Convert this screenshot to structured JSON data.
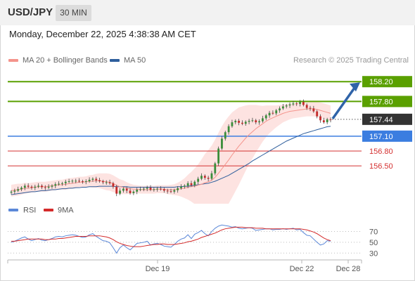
{
  "header": {
    "symbol": "USD/JPY",
    "timeframe": "30 MIN"
  },
  "timestamp": "Monday, December 22, 2025 4:38:38 AM CET",
  "legend": {
    "ma20_label": "MA 20 + Bollinger Bands",
    "ma50_label": "MA 50",
    "ma20_color": "#f4948c",
    "ma50_color": "#2e5e9c",
    "credit": "Research © 2025 Trading Central"
  },
  "colors": {
    "resistance": "#5aa000",
    "support_blue": "#3b7de0",
    "support_red": "#d43030",
    "current": "#333333",
    "arrow": "#2f63a8",
    "bull_candle": "#3a8d3a",
    "bear_candle": "#c42a2a",
    "band_fill": "#fde3e1",
    "rsi": "#5b88d8",
    "rsi_ma": "#d42a2a"
  },
  "chart_data": [
    {
      "type": "candlestick",
      "ylim": [
        155.85,
        158.6
      ],
      "xlabel": "",
      "ylabel": "",
      "x_ticks": [
        "Dec 19",
        "Dec 22",
        "Dec 28"
      ],
      "levels": [
        {
          "value": 158.2,
          "label": "158.20",
          "style": "resistance"
        },
        {
          "value": 157.8,
          "label": "157.80",
          "style": "resistance"
        },
        {
          "value": 157.44,
          "label": "157.44",
          "style": "current"
        },
        {
          "value": 157.1,
          "label": "157.10",
          "style": "support_blue"
        },
        {
          "value": 156.8,
          "label": "156.80",
          "style": "support_red"
        },
        {
          "value": 156.5,
          "label": "156.50",
          "style": "support_red"
        }
      ],
      "target_arrow": {
        "from": 157.44,
        "to": 158.2
      },
      "price_close": [
        155.98,
        156.0,
        156.03,
        156.06,
        156.1,
        156.08,
        156.06,
        156.08,
        156.1,
        156.07,
        156.06,
        156.08,
        156.1,
        156.13,
        156.14,
        156.15,
        156.18,
        156.19,
        156.2,
        156.2,
        156.19,
        156.18,
        156.19,
        156.22,
        156.24,
        156.21,
        156.19,
        156.17,
        156.17,
        156.15,
        156.08,
        155.94,
        156.0,
        156.04,
        156.0,
        155.95,
        155.98,
        156.02,
        156.03,
        156.04,
        156.06,
        156.02,
        156.03,
        156.04,
        156.03,
        156.0,
        155.99,
        155.98,
        156.01,
        156.05,
        156.08,
        156.1,
        156.15,
        156.11,
        156.18,
        156.24,
        156.3,
        156.26,
        156.24,
        156.35,
        156.55,
        156.85,
        157.05,
        157.18,
        157.3,
        157.38,
        157.41,
        157.37,
        157.35,
        157.39,
        157.41,
        157.42,
        157.38,
        157.4,
        157.46,
        157.52,
        157.57,
        157.56,
        157.62,
        157.66,
        157.7,
        157.72,
        157.74,
        157.76,
        157.75,
        157.79,
        157.73,
        157.67,
        157.66,
        157.6,
        157.5,
        157.42,
        157.38,
        157.44,
        157.43
      ],
      "ma20": [
        156.0,
        156.01,
        156.02,
        156.03,
        156.05,
        156.05,
        156.06,
        156.07,
        156.08,
        156.08,
        156.08,
        156.09,
        156.1,
        156.11,
        156.12,
        156.12,
        156.13,
        156.14,
        156.15,
        156.16,
        156.17,
        156.17,
        156.18,
        156.19,
        156.19,
        156.2,
        156.2,
        156.19,
        156.18,
        156.17,
        156.14,
        156.11,
        156.08,
        156.07,
        156.05,
        156.04,
        156.03,
        156.03,
        156.02,
        156.02,
        156.02,
        156.02,
        156.02,
        156.03,
        156.03,
        156.03,
        156.02,
        156.02,
        156.02,
        156.03,
        156.04,
        156.05,
        156.07,
        156.08,
        156.09,
        156.11,
        156.13,
        156.16,
        156.18,
        156.21,
        156.27,
        156.35,
        156.44,
        156.53,
        156.62,
        156.72,
        156.81,
        156.9,
        156.98,
        157.06,
        157.13,
        157.19,
        157.25,
        157.3,
        157.35,
        157.4,
        157.44,
        157.47,
        157.5,
        157.53,
        157.56,
        157.58,
        157.6,
        157.61,
        157.62,
        157.63,
        157.64,
        157.65,
        157.65,
        157.65,
        157.64,
        157.62,
        157.6,
        157.58,
        157.56
      ],
      "ma50": [
        155.92,
        155.93,
        155.94,
        155.95,
        155.96,
        155.97,
        155.98,
        155.98,
        155.99,
        156.0,
        156.0,
        156.01,
        156.02,
        156.02,
        156.03,
        156.04,
        156.04,
        156.05,
        156.05,
        156.06,
        156.06,
        156.07,
        156.07,
        156.08,
        156.08,
        156.08,
        156.09,
        156.09,
        156.09,
        156.09,
        156.09,
        156.08,
        156.08,
        156.08,
        156.08,
        156.07,
        156.07,
        156.07,
        156.07,
        156.07,
        156.07,
        156.07,
        156.07,
        156.07,
        156.07,
        156.07,
        156.07,
        156.07,
        156.07,
        156.08,
        156.08,
        156.09,
        156.09,
        156.1,
        156.11,
        156.12,
        156.13,
        156.14,
        156.15,
        156.17,
        156.19,
        156.22,
        156.25,
        156.28,
        156.31,
        156.35,
        156.39,
        156.43,
        156.47,
        156.51,
        156.55,
        156.6,
        156.64,
        156.68,
        156.72,
        156.76,
        156.8,
        156.84,
        156.88,
        156.92,
        156.96,
        157.0,
        157.03,
        157.06,
        157.09,
        157.12,
        157.15,
        157.17,
        157.19,
        157.21,
        157.23,
        157.25,
        157.27,
        157.29,
        157.3
      ],
      "band_width": [
        0.12,
        0.12,
        0.12,
        0.11,
        0.11,
        0.1,
        0.1,
        0.1,
        0.1,
        0.1,
        0.1,
        0.1,
        0.1,
        0.1,
        0.1,
        0.1,
        0.11,
        0.11,
        0.11,
        0.11,
        0.11,
        0.11,
        0.11,
        0.12,
        0.13,
        0.14,
        0.15,
        0.16,
        0.17,
        0.17,
        0.17,
        0.16,
        0.15,
        0.14,
        0.12,
        0.1,
        0.09,
        0.08,
        0.08,
        0.08,
        0.08,
        0.08,
        0.08,
        0.08,
        0.08,
        0.08,
        0.09,
        0.1,
        0.11,
        0.13,
        0.16,
        0.2,
        0.25,
        0.3,
        0.36,
        0.42,
        0.5,
        0.58,
        0.64,
        0.7,
        0.76,
        0.82,
        0.86,
        0.88,
        0.88,
        0.86,
        0.82,
        0.78,
        0.72,
        0.66,
        0.6,
        0.54,
        0.48,
        0.42,
        0.36,
        0.32,
        0.28,
        0.25,
        0.22,
        0.2,
        0.18,
        0.17,
        0.16,
        0.15,
        0.15,
        0.15,
        0.15,
        0.15,
        0.15,
        0.15,
        0.15,
        0.16,
        0.16,
        0.16,
        0.16
      ]
    },
    {
      "type": "line",
      "title": "",
      "series": [
        {
          "name": "RSI",
          "values": [
            50,
            52,
            55,
            58,
            60,
            56,
            53,
            55,
            57,
            54,
            53,
            55,
            57,
            60,
            61,
            60,
            62,
            63,
            64,
            63,
            61,
            59,
            60,
            64,
            66,
            61,
            57,
            53,
            52,
            49,
            40,
            30,
            40,
            45,
            40,
            36,
            42,
            48,
            49,
            50,
            52,
            45,
            47,
            48,
            46,
            43,
            42,
            41,
            46,
            52,
            56,
            58,
            64,
            57,
            65,
            68,
            72,
            66,
            62,
            70,
            76,
            80,
            82,
            81,
            80,
            78,
            79,
            76,
            75,
            76,
            77,
            76,
            72,
            73,
            74,
            75,
            75,
            73,
            74,
            74,
            75,
            74,
            75,
            76,
            73,
            74,
            68,
            63,
            62,
            56,
            50,
            45,
            47,
            53,
            52
          ]
        },
        {
          "name": "9MA",
          "values": [
            52,
            52,
            53,
            54,
            55,
            56,
            56,
            56,
            56,
            56,
            55,
            55,
            56,
            56,
            57,
            57,
            58,
            59,
            60,
            61,
            61,
            61,
            61,
            62,
            62,
            62,
            62,
            61,
            60,
            58,
            55,
            51,
            48,
            46,
            44,
            43,
            42,
            42,
            42,
            43,
            44,
            45,
            46,
            46,
            47,
            47,
            46,
            46,
            46,
            47,
            48,
            49,
            51,
            52,
            54,
            56,
            59,
            61,
            63,
            65,
            67,
            70,
            73,
            75,
            76,
            77,
            78,
            78,
            78,
            77,
            77,
            77,
            76,
            76,
            76,
            75,
            75,
            75,
            75,
            75,
            75,
            75,
            75,
            75,
            75,
            75,
            74,
            73,
            71,
            69,
            66,
            62,
            58,
            55,
            53
          ]
        }
      ],
      "ylim": [
        20,
        85
      ],
      "y_ticks": [
        70,
        50,
        30
      ]
    }
  ]
}
